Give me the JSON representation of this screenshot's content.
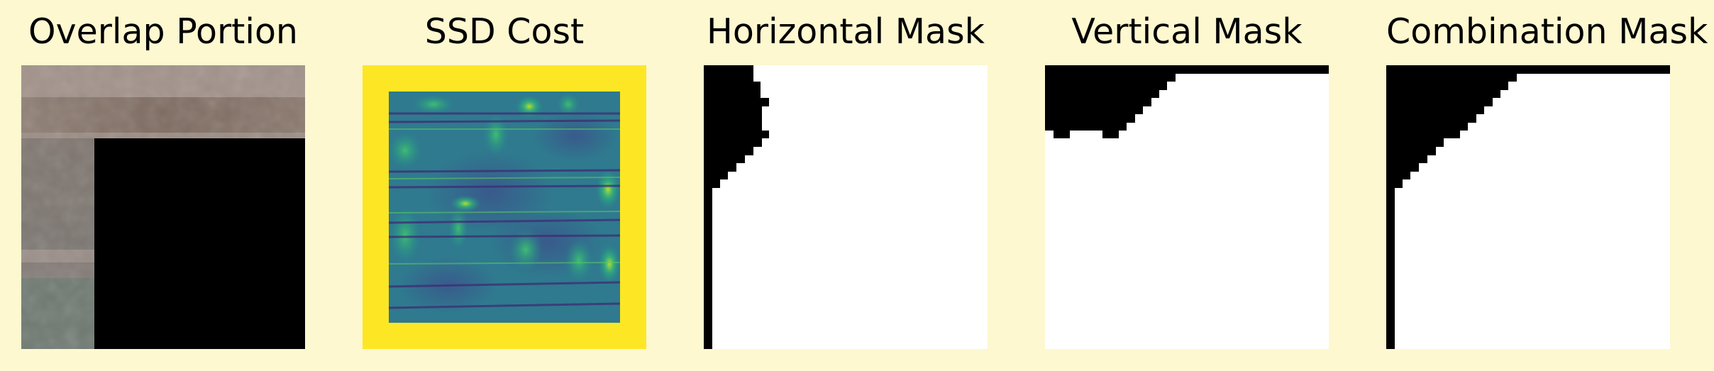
{
  "colors": {
    "background": "#fdf8d0",
    "ssd_border": "#fde725",
    "mask_black": "#000000",
    "mask_white": "#ffffff"
  },
  "panels": [
    {
      "title": "Overlap Portion",
      "icon": "overlap-portion-image"
    },
    {
      "title": "SSD Cost",
      "icon": "ssd-cost-heatmap"
    },
    {
      "title": "Horizontal Mask",
      "icon": "horizontal-mask-image"
    },
    {
      "title": "Vertical Mask",
      "icon": "vertical-mask-image"
    },
    {
      "title": "Combination Mask",
      "icon": "combination-mask-image"
    }
  ]
}
